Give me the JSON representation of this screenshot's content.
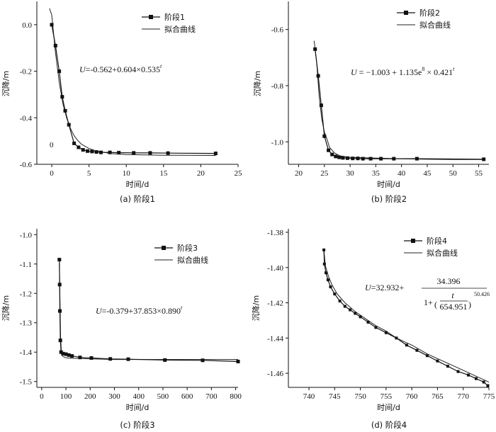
{
  "chart_data": [
    {
      "type": "line",
      "caption": "(a) 阶段1",
      "xlabel": "时间/d",
      "ylabel": "沉降/m",
      "xlim": [
        -2,
        25
      ],
      "ylim": [
        -0.6,
        0.1
      ],
      "xticks": [
        "0",
        "5",
        "10",
        "15",
        "20",
        "25"
      ],
      "yticks": [
        "0.0",
        "-0.2",
        "-0.4",
        "-0.6"
      ],
      "annotation": "0",
      "equation": {
        "head": "U",
        "body": "=-0.562+0.604×0.535",
        "sup": "t"
      },
      "series": [
        {
          "name": "阶段1",
          "x": [
            0,
            0.5,
            1,
            1.4,
            1.8,
            2.3,
            3,
            3.6,
            4.2,
            4.8,
            5.4,
            6,
            6.6,
            7.8,
            9,
            11,
            13.2,
            15.6,
            22
          ],
          "values": [
            0,
            -0.09,
            -0.2,
            -0.31,
            -0.37,
            -0.43,
            -0.51,
            -0.527,
            -0.538,
            -0.543,
            -0.545,
            -0.547,
            -0.549,
            -0.549,
            -0.55,
            -0.551,
            -0.551,
            -0.552,
            -0.553
          ]
        },
        {
          "name": "拟合曲线",
          "x": [
            -0.3,
            0,
            0.5,
            1,
            1.5,
            2,
            2.5,
            3,
            3.5,
            4,
            5,
            6,
            8,
            10,
            15,
            22
          ],
          "values": [
            0.07,
            0.042,
            -0.12,
            -0.248,
            -0.34,
            -0.401,
            -0.445,
            -0.477,
            -0.498,
            -0.514,
            -0.532,
            -0.543,
            -0.554,
            -0.558,
            -0.561,
            -0.562
          ]
        }
      ]
    },
    {
      "type": "line",
      "caption": "(b) 阶段2",
      "xlabel": "时间/d",
      "ylabel": "沉降/m",
      "xlim": [
        18,
        57
      ],
      "ylim": [
        -1.08,
        -0.5
      ],
      "xticks": [
        "20",
        "25",
        "30",
        "35",
        "40",
        "45",
        "50",
        "55"
      ],
      "yticks": [
        "-0.6",
        "-0.8",
        "-1.0"
      ],
      "equation": {
        "head": "U",
        "body": " = −1.003 + 1.135e",
        "sup1": "8",
        "body2": " × 0.421",
        "sup": "t"
      },
      "series": [
        {
          "name": "阶段2",
          "x": [
            23.2,
            23.8,
            24.4,
            25,
            25.8,
            26.5,
            27.2,
            27.9,
            28.6,
            29.5,
            30.5,
            31.5,
            32.5,
            34,
            36,
            38.5,
            43,
            56
          ],
          "values": [
            -0.67,
            -0.765,
            -0.87,
            -0.98,
            -1.03,
            -1.045,
            -1.052,
            -1.055,
            -1.057,
            -1.058,
            -1.059,
            -1.059,
            -1.06,
            -1.06,
            -1.06,
            -1.06,
            -1.06,
            -1.062
          ]
        },
        {
          "name": "拟合曲线",
          "x": [
            23,
            23.5,
            24,
            24.5,
            25,
            25.5,
            26,
            27,
            28,
            30,
            35,
            40,
            45,
            50,
            56
          ],
          "values": [
            -0.64,
            -0.715,
            -0.84,
            -0.92,
            -0.965,
            -0.99,
            -1.02,
            -1.04,
            -1.05,
            -1.055,
            -1.058,
            -1.06,
            -1.062,
            -1.063,
            -1.063
          ]
        }
      ]
    },
    {
      "type": "line",
      "caption": "(c) 阶段3",
      "xlabel": "时间/d",
      "ylabel": "沉降/m",
      "xlim": [
        -20,
        810
      ],
      "ylim": [
        -1.52,
        -0.98
      ],
      "xticks": [
        "0",
        "100",
        "200",
        "300",
        "400",
        "500",
        "600",
        "700",
        "800"
      ],
      "yticks": [
        "-1.0",
        "-1.1",
        "-1.2",
        "-1.3",
        "-1.4",
        "-1.5"
      ],
      "equation": {
        "head": "U",
        "body": "=-0.379+37.853×0.890",
        "sup": "t"
      },
      "series": [
        {
          "name": "阶段3",
          "x": [
            73,
            74,
            75,
            77,
            80,
            88,
            100,
            112,
            125,
            158,
            205,
            283,
            357,
            508,
            664,
            810
          ],
          "values": [
            -1.085,
            -1.17,
            -1.26,
            -1.36,
            -1.4,
            -1.405,
            -1.407,
            -1.41,
            -1.413,
            -1.418,
            -1.42,
            -1.423,
            -1.424,
            -1.427,
            -1.428,
            -1.432
          ]
        },
        {
          "name": "拟合曲线",
          "x": [
            73,
            75,
            78,
            82,
            88,
            95,
            105,
            125,
            160,
            210,
            300,
            400,
            500,
            650,
            810
          ],
          "values": [
            -1.1,
            -1.2,
            -1.35,
            -1.41,
            -1.415,
            -1.418,
            -1.42,
            -1.421,
            -1.422,
            -1.423,
            -1.425,
            -1.425,
            -1.425,
            -1.425,
            -1.425
          ]
        }
      ]
    },
    {
      "type": "line",
      "caption": "(d) 阶段4",
      "xlabel": "时间/d",
      "ylabel": "沉降/m",
      "xlim": [
        736,
        775
      ],
      "ylim": [
        -1.468,
        -1.378
      ],
      "xticks": [
        "740",
        "745",
        "750",
        "755",
        "760",
        "765",
        "770",
        "775"
      ],
      "yticks": [
        "-1.38",
        "-1.40",
        "-1.42",
        "-1.44",
        "-1.46"
      ],
      "equation": {
        "head": "U",
        "body": "=32.932+",
        "num": "34.396",
        "den_pre": "1+",
        "frac_num": "t",
        "frac_den": "654.951",
        "exp": "50.426"
      },
      "series": [
        {
          "name": "阶段4",
          "x": [
            742.9,
            743,
            743.3,
            743.7,
            744.2,
            745,
            746,
            747,
            748,
            749,
            750,
            751.5,
            753,
            755,
            757,
            759,
            761,
            763,
            765,
            767,
            769,
            771,
            772.5,
            774,
            774.8
          ],
          "values": [
            -1.39,
            -1.398,
            -1.403,
            -1.407,
            -1.411,
            -1.415,
            -1.419,
            -1.422,
            -1.424,
            -1.426,
            -1.428,
            -1.431,
            -1.434,
            -1.437,
            -1.44,
            -1.444,
            -1.447,
            -1.45,
            -1.453,
            -1.456,
            -1.459,
            -1.461,
            -1.463,
            -1.465,
            -1.467
          ]
        },
        {
          "name": "拟合曲线",
          "x": [
            742.9,
            743.2,
            743.8,
            744.5,
            745.5,
            747,
            749,
            751,
            753,
            755,
            757,
            760,
            763,
            766,
            769,
            772,
            775
          ],
          "values": [
            -1.39,
            -1.399,
            -1.405,
            -1.41,
            -1.415,
            -1.42,
            -1.425,
            -1.429,
            -1.433,
            -1.436,
            -1.44,
            -1.444,
            -1.449,
            -1.453,
            -1.457,
            -1.461,
            -1.465
          ]
        }
      ]
    }
  ]
}
